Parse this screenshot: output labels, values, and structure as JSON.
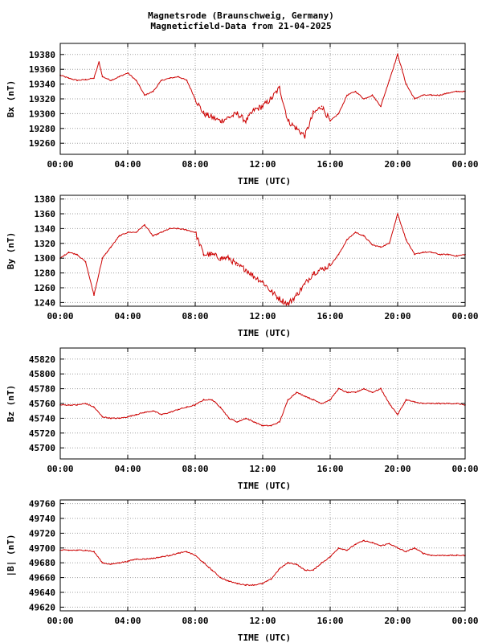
{
  "title": "Magnetsrode (Braunschweig, Germany)",
  "subtitle": "Magneticfield-Data from 21-04-2025",
  "colors": {
    "series": "#cc0000",
    "grid": "#a0a0a0",
    "axis": "#000000"
  },
  "chart_data": [
    {
      "type": "line",
      "ylabel": "Bx (nT)",
      "xlabel": "TIME (UTC)",
      "x_ticks": [
        "00:00",
        "04:00",
        "08:00",
        "12:00",
        "16:00",
        "20:00",
        "00:00"
      ],
      "xlim": [
        0,
        24
      ],
      "y_ticks": [
        19260,
        19280,
        19300,
        19320,
        19340,
        19360,
        19380
      ],
      "ylim": [
        19245,
        19395
      ],
      "grid": true,
      "x": [
        0,
        0.5,
        1,
        1.5,
        2,
        2.3,
        2.5,
        3,
        3.5,
        4,
        4.5,
        5,
        5.5,
        6,
        6.5,
        7,
        7.5,
        8,
        8.5,
        9,
        9.5,
        10,
        10.5,
        11,
        11.5,
        12,
        12.5,
        13,
        13.5,
        14,
        14.5,
        15,
        15.5,
        16,
        16.5,
        17,
        17.5,
        18,
        18.5,
        19,
        19.5,
        20,
        20.5,
        21,
        21.5,
        22,
        22.5,
        23,
        23.5,
        24
      ],
      "values": [
        19352,
        19348,
        19345,
        19346,
        19348,
        19370,
        19350,
        19345,
        19350,
        19355,
        19345,
        19325,
        19330,
        19345,
        19348,
        19350,
        19345,
        19320,
        19300,
        19295,
        19290,
        19295,
        19300,
        19290,
        19305,
        19310,
        19320,
        19335,
        19290,
        19280,
        19270,
        19300,
        19310,
        19290,
        19300,
        19325,
        19330,
        19320,
        19325,
        19310,
        19345,
        19380,
        19340,
        19320,
        19325,
        19325,
        19325,
        19328,
        19330,
        19330
      ]
    },
    {
      "type": "line",
      "ylabel": "By (nT)",
      "xlabel": "TIME (UTC)",
      "x_ticks": [
        "00:00",
        "04:00",
        "08:00",
        "12:00",
        "16:00",
        "20:00",
        "00:00"
      ],
      "xlim": [
        0,
        24
      ],
      "y_ticks": [
        1240,
        1260,
        1280,
        1300,
        1320,
        1340,
        1360,
        1380
      ],
      "ylim": [
        1235,
        1385
      ],
      "grid": true,
      "x": [
        0,
        0.5,
        1,
        1.5,
        2,
        2.5,
        3,
        3.5,
        4,
        4.5,
        5,
        5.5,
        6,
        6.5,
        7,
        7.5,
        8,
        8.5,
        9,
        9.5,
        10,
        10.5,
        11,
        11.5,
        12,
        12.5,
        13,
        13.5,
        14,
        14.5,
        15,
        15.5,
        16,
        16.5,
        17,
        17.5,
        18,
        18.5,
        19,
        19.5,
        20,
        20.5,
        21,
        21.5,
        22,
        22.5,
        23,
        23.5,
        24
      ],
      "values": [
        1300,
        1308,
        1305,
        1295,
        1250,
        1300,
        1315,
        1330,
        1335,
        1335,
        1345,
        1330,
        1335,
        1340,
        1340,
        1338,
        1335,
        1305,
        1305,
        1300,
        1300,
        1290,
        1285,
        1275,
        1268,
        1255,
        1245,
        1238,
        1250,
        1265,
        1280,
        1285,
        1290,
        1305,
        1325,
        1335,
        1330,
        1318,
        1315,
        1320,
        1360,
        1325,
        1305,
        1308,
        1308,
        1305,
        1305,
        1303,
        1305
      ]
    },
    {
      "type": "line",
      "ylabel": "Bz (nT)",
      "xlabel": "TIME (UTC)",
      "x_ticks": [
        "00:00",
        "04:00",
        "08:00",
        "12:00",
        "16:00",
        "20:00",
        "00:00"
      ],
      "xlim": [
        0,
        24
      ],
      "y_ticks": [
        45700,
        45720,
        45740,
        45760,
        45780,
        45800,
        45820
      ],
      "ylim": [
        45685,
        45835
      ],
      "grid": true,
      "x": [
        0,
        0.5,
        1,
        1.5,
        2,
        2.5,
        3,
        3.5,
        4,
        4.5,
        5,
        5.5,
        6,
        6.5,
        7,
        7.5,
        8,
        8.5,
        9,
        9.5,
        10,
        10.5,
        11,
        11.5,
        12,
        12.5,
        13,
        13.5,
        14,
        14.5,
        15,
        15.5,
        16,
        16.5,
        17,
        17.5,
        18,
        18.5,
        19,
        19.5,
        20,
        20.5,
        21,
        21.5,
        22,
        22.5,
        23,
        23.5,
        24
      ],
      "values": [
        45758,
        45758,
        45758,
        45760,
        45755,
        45742,
        45740,
        45740,
        45742,
        45745,
        45748,
        45750,
        45745,
        45748,
        45752,
        45755,
        45758,
        45765,
        45765,
        45755,
        45740,
        45735,
        45740,
        45735,
        45730,
        45730,
        45735,
        45765,
        45775,
        45770,
        45765,
        45760,
        45765,
        45780,
        45775,
        45775,
        45780,
        45775,
        45780,
        45760,
        45745,
        45765,
        45762,
        45760,
        45760,
        45760,
        45760,
        45760,
        45758
      ]
    },
    {
      "type": "line",
      "ylabel": "|B| (nT)",
      "xlabel": "TIME (UTC)",
      "x_ticks": [
        "00:00",
        "04:00",
        "08:00",
        "12:00",
        "16:00",
        "20:00",
        "00:00"
      ],
      "xlim": [
        0,
        24
      ],
      "y_ticks": [
        49620,
        49640,
        49660,
        49680,
        49700,
        49720,
        49740,
        49760
      ],
      "ylim": [
        49615,
        49765
      ],
      "grid": true,
      "x": [
        0,
        0.5,
        1,
        1.5,
        2,
        2.5,
        3,
        3.5,
        4,
        4.5,
        5,
        5.5,
        6,
        6.5,
        7,
        7.5,
        8,
        8.5,
        9,
        9.5,
        10,
        10.5,
        11,
        11.5,
        12,
        12.5,
        13,
        13.5,
        14,
        14.5,
        15,
        15.5,
        16,
        16.5,
        17,
        17.5,
        18,
        18.5,
        19,
        19.5,
        20,
        20.5,
        21,
        21.5,
        22,
        22.5,
        23,
        23.5,
        24
      ],
      "values": [
        49697,
        49697,
        49697,
        49697,
        49695,
        49680,
        49678,
        49680,
        49682,
        49685,
        49685,
        49686,
        49688,
        49690,
        49693,
        49695,
        49690,
        49680,
        49670,
        49660,
        49655,
        49652,
        49650,
        49650,
        49652,
        49658,
        49672,
        49680,
        49678,
        49670,
        49670,
        49680,
        49688,
        49700,
        49697,
        49705,
        49710,
        49707,
        49703,
        49706,
        49700,
        49695,
        49700,
        49693,
        49690,
        49690,
        49690,
        49690,
        49690
      ]
    }
  ]
}
